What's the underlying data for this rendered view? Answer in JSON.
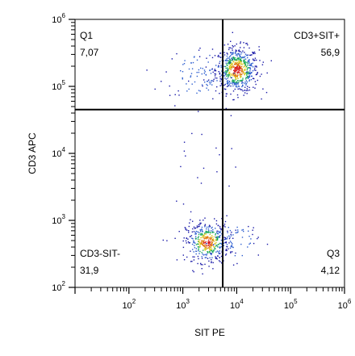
{
  "chart_data": {
    "type": "scatter",
    "title": "",
    "xlabel": "SIT PE",
    "ylabel": "CD3 APC",
    "xscale": "log",
    "yscale": "log",
    "xlim": [
      10,
      1000000
    ],
    "ylim": [
      100,
      1000000
    ],
    "x_ticks": [
      {
        "base": "10",
        "exp": "2",
        "value": 100
      },
      {
        "base": "10",
        "exp": "3",
        "value": 1000
      },
      {
        "base": "10",
        "exp": "4",
        "value": 10000
      },
      {
        "base": "10",
        "exp": "5",
        "value": 100000
      },
      {
        "base": "10",
        "exp": "6",
        "value": 1000000
      }
    ],
    "y_ticks": [
      {
        "base": "10",
        "exp": "2",
        "value": 100
      },
      {
        "base": "10",
        "exp": "3",
        "value": 1000
      },
      {
        "base": "10",
        "exp": "4",
        "value": 10000
      },
      {
        "base": "10",
        "exp": "5",
        "value": 100000
      },
      {
        "base": "10",
        "exp": "6",
        "value": 1000000
      }
    ],
    "gates": {
      "x": 5500,
      "y": 45000
    },
    "quadrants": [
      {
        "name": "Q1",
        "value": "7,07",
        "position": "top-left"
      },
      {
        "name": "CD3+SIT+",
        "value": "56,9",
        "position": "top-right"
      },
      {
        "name": "CD3-SIT-",
        "value": "31,9",
        "position": "bottom-left"
      },
      {
        "name": "Q3",
        "value": "4,12",
        "position": "bottom-right"
      }
    ],
    "populations": [
      {
        "population": "CD3+SIT+",
        "center_x": 10000,
        "center_y": 180000,
        "spread_log_x": 0.2,
        "spread_log_y": 0.17,
        "events": 620
      },
      {
        "population": "Q1",
        "center_x": 2200,
        "center_y": 160000,
        "spread_log_x": 0.35,
        "spread_log_y": 0.2,
        "events": 90
      },
      {
        "population": "CD3-SIT-",
        "center_x": 2800,
        "center_y": 480,
        "spread_log_x": 0.2,
        "spread_log_y": 0.15,
        "events": 430
      },
      {
        "population": "Q3",
        "center_x": 9000,
        "center_y": 500,
        "spread_log_x": 0.22,
        "spread_log_y": 0.15,
        "events": 60
      }
    ],
    "density_colors": [
      "#1a1aa8",
      "#2e5fd0",
      "#1aa85a",
      "#d8c81a",
      "#e07a10",
      "#d81a1a"
    ],
    "grid": false,
    "legend": "none"
  }
}
